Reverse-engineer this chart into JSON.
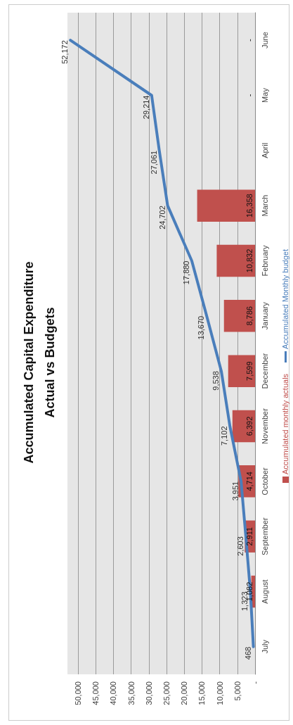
{
  "chart_data": {
    "type": "bar",
    "title": "Accumulated Capital Expenditure\nActual vs Budgets",
    "orientation": "horizontal",
    "categories": [
      "June",
      "May",
      "April",
      "March",
      "February",
      "January",
      "December",
      "November",
      "October",
      "September",
      "August",
      "July"
    ],
    "series": [
      {
        "name": "Accumulated monthly actuals",
        "color": "#c0504d",
        "values": [
          0,
          0,
          null,
          16358,
          10832,
          8786,
          7599,
          6392,
          4714,
          2911,
          1082,
          null
        ],
        "value_labels": [
          "-",
          "-",
          null,
          "16,358",
          "10,832",
          "8,786",
          "7,599",
          "6,392",
          "4,714",
          "2,911",
          "1,082",
          null
        ]
      },
      {
        "type": "line",
        "name": "Accumulated Monthly budget",
        "color": "#4a7ebb",
        "values": [
          52172,
          29214,
          27061,
          24702,
          17880,
          13670,
          9538,
          7102,
          3951,
          2603,
          1323,
          468
        ],
        "value_labels": [
          "52,172",
          "29,214",
          "27,061",
          "24,702",
          "17,880",
          "13,670",
          "9,538",
          "7,102",
          "3,951",
          "2,603",
          "1,323",
          "468"
        ]
      }
    ],
    "xlim": [
      53000,
      0
    ],
    "xticks": [
      {
        "value": 0,
        "label": "-"
      },
      {
        "value": 5000,
        "label": "5,000"
      },
      {
        "value": 10000,
        "label": "10,000"
      },
      {
        "value": 15000,
        "label": "15,000"
      },
      {
        "value": 20000,
        "label": "20,000"
      },
      {
        "value": 25000,
        "label": "25,000"
      },
      {
        "value": 30000,
        "label": "30,000"
      },
      {
        "value": 35000,
        "label": "35,000"
      },
      {
        "value": 40000,
        "label": "40,000"
      },
      {
        "value": 45000,
        "label": "45,000"
      },
      {
        "value": 50000,
        "label": "50,000"
      }
    ],
    "grid": "x",
    "legend": "right",
    "marker": "none"
  }
}
